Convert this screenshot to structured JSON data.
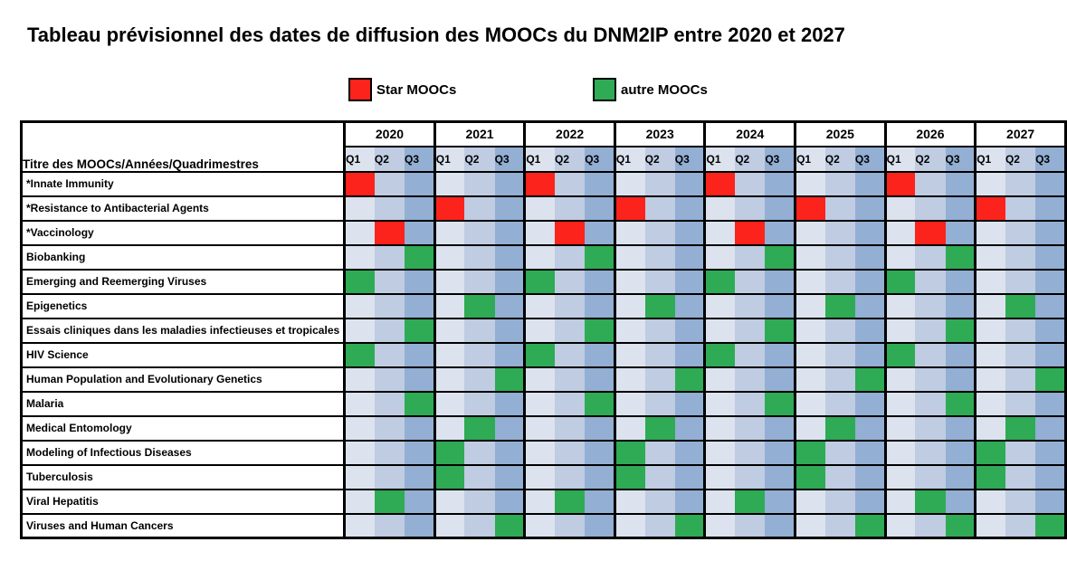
{
  "title": "Tableau prévisionnel des dates de diffusion des MOOCs du DNM2IP entre 2020 et 2027",
  "chart_data": {
    "type": "table",
    "title": "Tableau prévisionnel des dates de diffusion des MOOCs du DNM2IP entre 2020 et 2027",
    "corner_header": "Titre des MOOCs/Années/Quadrimestres",
    "years": [
      "2020",
      "2021",
      "2022",
      "2023",
      "2024",
      "2025",
      "2026",
      "2027"
    ],
    "quarters": [
      "Q1",
      "Q2",
      "Q3"
    ],
    "legend": [
      {
        "label": "Star MOOCs",
        "category": "star",
        "color": "#fb231c"
      },
      {
        "label": "autre MOOCs",
        "category": "autre",
        "color": "#2eab54"
      }
    ],
    "colors": {
      "star": "#fb231c",
      "autre": "#2eab54",
      "q1": "#dce3ee",
      "q2": "#bfcce2",
      "q3": "#93afd3",
      "border": "#000000"
    },
    "rows": [
      {
        "label": "*Innate Immunity",
        "category": "star",
        "scheduled": [
          "2020-Q1",
          "2022-Q1",
          "2024-Q1",
          "2026-Q1"
        ]
      },
      {
        "label": "*Resistance to Antibacterial Agents",
        "category": "star",
        "scheduled": [
          "2021-Q1",
          "2023-Q1",
          "2025-Q1",
          "2027-Q1"
        ]
      },
      {
        "label": "*Vaccinology",
        "category": "star",
        "scheduled": [
          "2020-Q2",
          "2022-Q2",
          "2024-Q2",
          "2026-Q2"
        ]
      },
      {
        "label": "Biobanking",
        "category": "autre",
        "scheduled": [
          "2020-Q3",
          "2022-Q3",
          "2024-Q3",
          "2026-Q3"
        ]
      },
      {
        "label": "Emerging and Reemerging Viruses",
        "category": "autre",
        "scheduled": [
          "2020-Q1",
          "2022-Q1",
          "2024-Q1",
          "2026-Q1"
        ]
      },
      {
        "label": "Epigenetics",
        "category": "autre",
        "scheduled": [
          "2021-Q2",
          "2023-Q2",
          "2025-Q2",
          "2027-Q2"
        ]
      },
      {
        "label": "Essais cliniques dans les maladies infectieuses et tropicales",
        "category": "autre",
        "scheduled": [
          "2020-Q3",
          "2022-Q3",
          "2024-Q3",
          "2026-Q3"
        ]
      },
      {
        "label": "HIV Science",
        "category": "autre",
        "scheduled": [
          "2020-Q1",
          "2022-Q1",
          "2024-Q1",
          "2026-Q1"
        ]
      },
      {
        "label": "Human Population and Evolutionary Genetics",
        "category": "autre",
        "scheduled": [
          "2021-Q3",
          "2023-Q3",
          "2025-Q3",
          "2027-Q3"
        ]
      },
      {
        "label": "Malaria",
        "category": "autre",
        "scheduled": [
          "2020-Q3",
          "2022-Q3",
          "2024-Q3",
          "2026-Q3"
        ]
      },
      {
        "label": "Medical Entomology",
        "category": "autre",
        "scheduled": [
          "2021-Q2",
          "2023-Q2",
          "2025-Q2",
          "2027-Q2"
        ]
      },
      {
        "label": "Modeling of Infectious Diseases",
        "category": "autre",
        "scheduled": [
          "2021-Q1",
          "2023-Q1",
          "2025-Q1",
          "2027-Q1"
        ]
      },
      {
        "label": "Tuberculosis",
        "category": "autre",
        "scheduled": [
          "2021-Q1",
          "2023-Q1",
          "2025-Q1",
          "2027-Q1"
        ]
      },
      {
        "label": "Viral Hepatitis",
        "category": "autre",
        "scheduled": [
          "2020-Q2",
          "2022-Q2",
          "2024-Q2",
          "2026-Q2"
        ]
      },
      {
        "label": "Viruses and Human Cancers",
        "category": "autre",
        "scheduled": [
          "2021-Q3",
          "2023-Q3",
          "2025-Q3",
          "2026-Q3",
          "2027-Q3"
        ]
      }
    ]
  }
}
